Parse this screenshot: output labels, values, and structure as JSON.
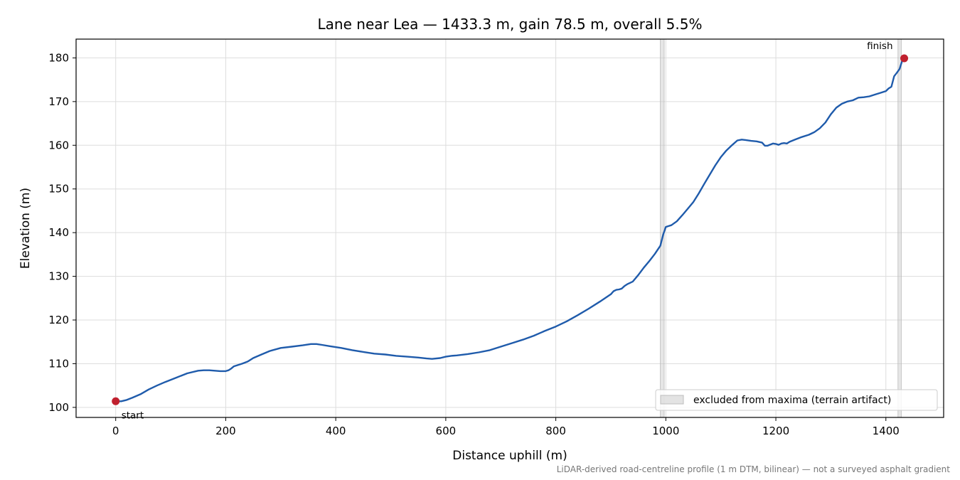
{
  "chart_data": {
    "type": "line",
    "title": "Lane near Lea — 1433.3 m, gain 78.5 m, overall 5.5%",
    "xlabel": "Distance uphill (m)",
    "ylabel": "Elevation (m)",
    "xlim": [
      -72,
      1505
    ],
    "ylim": [
      97.7,
      184.3
    ],
    "xticks": [
      0,
      200,
      400,
      600,
      800,
      1000,
      1200,
      1400
    ],
    "yticks": [
      100,
      110,
      120,
      130,
      140,
      150,
      160,
      170,
      180
    ],
    "grid": true,
    "colors": {
      "line": "#1f5bab",
      "endpoint": "#c0202e",
      "band": "#c8c8c8",
      "grid": "#dddddd"
    },
    "series": [
      {
        "x": [
          0,
          10,
          20,
          30,
          45,
          60,
          75,
          90,
          110,
          130,
          150,
          160,
          170,
          180,
          190,
          200,
          205,
          210,
          215,
          220,
          230,
          240,
          250,
          265,
          280,
          300,
          320,
          340,
          355,
          365,
          375,
          390,
          410,
          430,
          450,
          470,
          490,
          510,
          530,
          550,
          565,
          575,
          590,
          600,
          610,
          620,
          640,
          660,
          680,
          700,
          720,
          740,
          760,
          780,
          800,
          820,
          840,
          860,
          880,
          900,
          905,
          910,
          915,
          920,
          925,
          930,
          935,
          940,
          950,
          960,
          970,
          980,
          990,
          995,
          1000,
          1005,
          1010,
          1020,
          1030,
          1040,
          1050,
          1060,
          1070,
          1080,
          1090,
          1100,
          1110,
          1120,
          1130,
          1138,
          1145,
          1155,
          1165,
          1175,
          1180,
          1185,
          1195,
          1200,
          1205,
          1210,
          1215,
          1220,
          1225,
          1235,
          1245,
          1260,
          1270,
          1280,
          1290,
          1300,
          1310,
          1320,
          1330,
          1340,
          1350,
          1360,
          1370,
          1380,
          1390,
          1400,
          1405,
          1410,
          1415,
          1420,
          1425,
          1430,
          1433.3
        ],
        "y": [
          101.4,
          101.4,
          101.7,
          102.2,
          103.0,
          104.1,
          105.0,
          105.8,
          106.8,
          107.8,
          108.4,
          108.5,
          108.5,
          108.4,
          108.3,
          108.3,
          108.5,
          108.9,
          109.4,
          109.6,
          110.0,
          110.5,
          111.3,
          112.1,
          112.9,
          113.6,
          113.9,
          114.2,
          114.5,
          114.5,
          114.3,
          114.0,
          113.6,
          113.1,
          112.7,
          112.3,
          112.1,
          111.8,
          111.6,
          111.4,
          111.2,
          111.1,
          111.3,
          111.6,
          111.8,
          111.9,
          112.2,
          112.6,
          113.1,
          113.9,
          114.7,
          115.5,
          116.4,
          117.5,
          118.5,
          119.7,
          121.1,
          122.6,
          124.2,
          125.9,
          126.6,
          126.9,
          127.0,
          127.2,
          127.8,
          128.2,
          128.5,
          128.8,
          130.3,
          132.0,
          133.5,
          135.1,
          137.0,
          139.5,
          141.3,
          141.5,
          141.7,
          142.6,
          144.0,
          145.5,
          147.0,
          149.0,
          151.2,
          153.3,
          155.4,
          157.3,
          158.8,
          160.0,
          161.1,
          161.3,
          161.2,
          161.0,
          160.9,
          160.6,
          159.9,
          159.9,
          160.4,
          160.3,
          160.1,
          160.4,
          160.5,
          160.4,
          160.8,
          161.3,
          161.8,
          162.4,
          163.0,
          163.9,
          165.2,
          167.1,
          168.6,
          169.5,
          170.0,
          170.3,
          170.9,
          171.0,
          171.2,
          171.6,
          172.0,
          172.4,
          173.0,
          173.4,
          175.8,
          176.6,
          177.5,
          179.5,
          179.9
        ]
      }
    ],
    "excluded_bands": [
      [
        990,
        997
      ],
      [
        1422,
        1428
      ]
    ],
    "legend": {
      "label": "excluded from maxima (terrain artifact)",
      "placement": "lower-right"
    },
    "annotations": {
      "start": "start",
      "finish": "finish"
    },
    "footnote": "LiDAR-derived road-centreline profile (1 m DTM, bilinear) — not a surveyed asphalt gradient"
  }
}
